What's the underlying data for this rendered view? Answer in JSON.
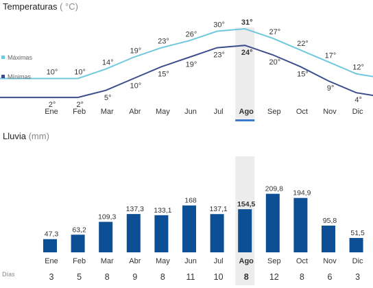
{
  "temperature": {
    "title": "Temperaturas",
    "unit": "( °C)",
    "legend": {
      "max": "Máximas",
      "min": "Mínimas"
    },
    "colors": {
      "max": "#6fc8dc",
      "min": "#3d4e8c"
    }
  },
  "rain": {
    "title": "Lluvia",
    "unit": "(mm)",
    "days_label": "Días",
    "color": "#0d4f94"
  },
  "highlight": {
    "index": 7,
    "bg": "#ececec",
    "accent": "#3a7ac8"
  },
  "chart_data": [
    {
      "type": "line",
      "title": "Temperaturas",
      "ylabel": "°C",
      "categories": [
        "Ene",
        "Feb",
        "Mar",
        "Abr",
        "May",
        "Jun",
        "Jul",
        "Ago",
        "Sep",
        "Oct",
        "Nov",
        "Dic"
      ],
      "series": [
        {
          "name": "Máximas",
          "values": [
            10,
            10,
            14,
            19,
            23,
            26,
            30,
            31,
            27,
            22,
            17,
            12
          ],
          "labels": [
            "10°",
            "10°",
            "14°",
            "19°",
            "23°",
            "26°",
            "30°",
            "31°",
            "27°",
            "22°",
            "17°",
            "12°"
          ]
        },
        {
          "name": "Mínimas",
          "values": [
            2,
            2,
            5,
            10,
            15,
            19,
            23,
            24,
            20,
            15,
            9,
            4
          ],
          "labels": [
            "2°",
            "2°",
            "5°",
            "10°",
            "15°",
            "19°",
            "23°",
            "24°",
            "20°",
            "15°",
            "9°",
            "4°"
          ]
        }
      ],
      "highlight_category": "Ago"
    },
    {
      "type": "bar",
      "title": "Lluvia",
      "ylabel": "mm",
      "categories": [
        "Ene",
        "Feb",
        "Mar",
        "Abr",
        "May",
        "Jun",
        "Jul",
        "Ago",
        "Sep",
        "Oct",
        "Nov",
        "Dic"
      ],
      "values": [
        47.3,
        63.2,
        109.3,
        137.3,
        133.1,
        168,
        137.1,
        154.5,
        209.8,
        194.9,
        95.8,
        51.5
      ],
      "value_labels": [
        "47,3",
        "63,2",
        "109,3",
        "137,3",
        "133,1",
        "168",
        "137,1",
        "154,5",
        "209,8",
        "194,9",
        "95,8",
        "51,5"
      ],
      "days": [
        3,
        5,
        8,
        9,
        8,
        11,
        10,
        8,
        12,
        8,
        6,
        3
      ],
      "highlight_category": "Ago"
    }
  ]
}
